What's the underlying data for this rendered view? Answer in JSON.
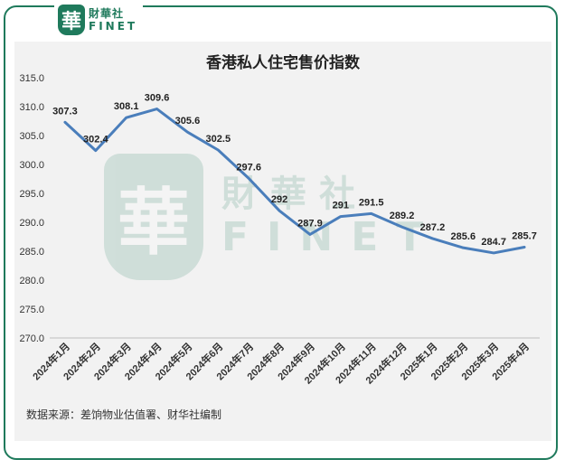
{
  "logo": {
    "mark": "華",
    "name_cn": "財華社",
    "name_en": "FINET"
  },
  "watermark": {
    "mark": "華",
    "name_cn": "財華社",
    "name_en": "FINET"
  },
  "source_note": "数据来源：差饷物业估值署、财华社编制",
  "colors": {
    "brand": "#1f7a5c",
    "line": "#4a7ebb",
    "grid": "#d9d9d9",
    "panel": "#f2f2f2"
  },
  "chart_data": {
    "type": "line",
    "title": "香港私人住宅售价指数",
    "xlabel": "",
    "ylabel": "",
    "categories": [
      "2024年1月",
      "2024年2月",
      "2024年3月",
      "2024年4月",
      "2024年5月",
      "2024年6月",
      "2024年7月",
      "2024年8月",
      "2024年9月",
      "2024年10月",
      "2024年11月",
      "2024年12月",
      "2025年1月",
      "2025年2月",
      "2025年3月",
      "2025年4月"
    ],
    "values": [
      307.3,
      302.4,
      308.1,
      309.6,
      305.6,
      302.5,
      297.6,
      292,
      287.9,
      291,
      291.5,
      289.2,
      287.2,
      285.6,
      284.7,
      285.7
    ],
    "data_labels": [
      "307.3",
      "302.4",
      "308.1",
      "309.6",
      "305.6",
      "302.5",
      "297.6",
      "292",
      "287.9",
      "291",
      "291.5",
      "289.2",
      "287.2",
      "285.6",
      "284.7",
      "285.7"
    ],
    "ylim": [
      270,
      315
    ],
    "yticks": [
      "270.0",
      "275.0",
      "280.0",
      "285.0",
      "290.0",
      "295.0",
      "300.0",
      "305.0",
      "310.0",
      "315.0"
    ],
    "grid": false,
    "legend": "none"
  }
}
